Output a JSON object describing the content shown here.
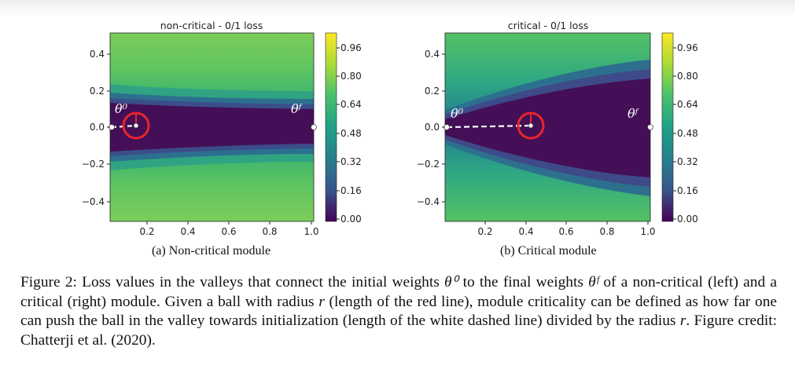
{
  "panels": [
    {
      "id": "a",
      "title": "non-critical - 0/1 loss",
      "subcaption": "(a) Non-critical module",
      "x_ticks": [
        "0.2",
        "0.4",
        "0.6",
        "0.8",
        "1.0"
      ],
      "y_ticks": [
        "0.4",
        "0.2",
        "0.0",
        "−0.2",
        "−0.4"
      ],
      "colorbar_ticks": [
        "0.96",
        "0.80",
        "0.64",
        "0.48",
        "0.32",
        "0.16",
        "0.00"
      ],
      "label_start": "θ⁰",
      "label_end": "θᶠ"
    },
    {
      "id": "b",
      "title": "critical - 0/1 loss",
      "subcaption": "(b) Critical module",
      "x_ticks": [
        "0.2",
        "0.4",
        "0.6",
        "0.8",
        "1.0"
      ],
      "y_ticks": [
        "0.4",
        "0.2",
        "0.0",
        "−0.2",
        "−0.4"
      ],
      "colorbar_ticks": [
        "0.96",
        "0.80",
        "0.64",
        "0.48",
        "0.32",
        "0.16",
        "0.00"
      ],
      "label_start": "θ⁰",
      "label_end": "θᶠ"
    }
  ],
  "caption": {
    "p1": "Figure 2: Loss values in the valleys that connect the initial weights ",
    "theta0": "θ⁰",
    "p2": " to the final weights ",
    "thetaF": "θᶠ",
    "p3": " of a non-critical (left) and a critical (right) module. Given a ball with radius ",
    "r1": "r",
    "p4": " (length of the red line), module criticality can be defined as how far one can push the ball in the valley towards initialization (length of the white dashed line) divided by the radius ",
    "r2": "r",
    "p5": ". Figure credit: Chatterji et al. (2020)."
  },
  "colors": {
    "valley": "#440f56",
    "plateau": "#57c363",
    "ball": "#e8252b",
    "dashed_line": "#ffffff"
  }
}
